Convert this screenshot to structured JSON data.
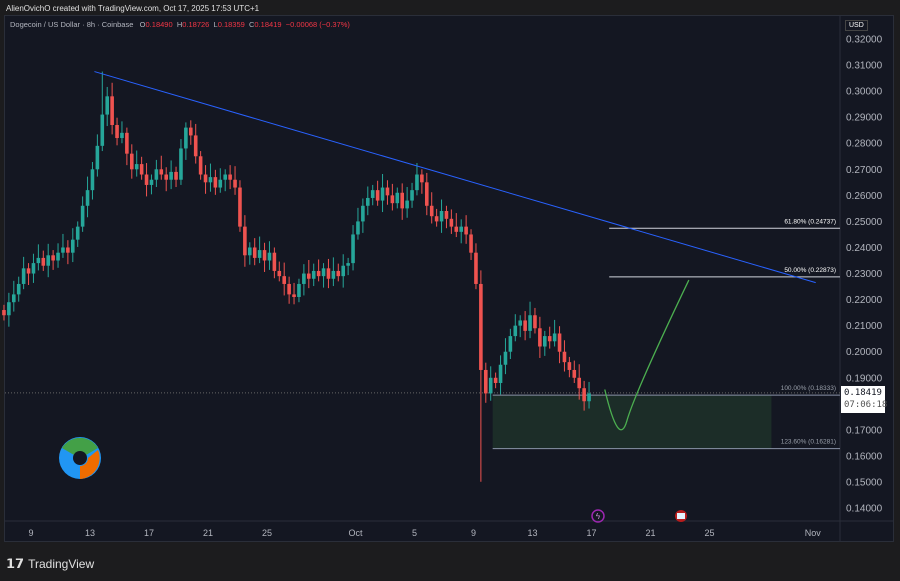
{
  "credit": "AlienOvichO created with TradingView.com, Oct 17, 2025 17:53 UTC+1",
  "legend": {
    "symbol": "Dogecoin / US Dollar · 8h · Coinbase",
    "o_label": "O",
    "o": "0.18490",
    "h_label": "H",
    "h": "0.18726",
    "l_label": "L",
    "l": "0.18359",
    "c_label": "C",
    "c": "0.18419",
    "change": "−0.00068 (−0.37%)"
  },
  "currency": "USD",
  "last_price": "0.18419",
  "countdown": "07:06:18",
  "footer_brand": "TradingView",
  "colors": {
    "up": "#26a69a",
    "down": "#ef5350",
    "trend": "#2962ff",
    "curve": "#4caf50",
    "bg": "#141722"
  },
  "chart_data": {
    "type": "candlestick",
    "interval": "8h",
    "start": "Sep 7",
    "closes": [
      0.214,
      0.219,
      0.222,
      0.226,
      0.232,
      0.23,
      0.234,
      0.236,
      0.233,
      0.237,
      0.235,
      0.238,
      0.24,
      0.238,
      0.243,
      0.248,
      0.256,
      0.262,
      0.27,
      0.279,
      0.291,
      0.298,
      0.287,
      0.282,
      0.284,
      0.276,
      0.27,
      0.272,
      0.268,
      0.264,
      0.266,
      0.27,
      0.268,
      0.266,
      0.269,
      0.266,
      0.278,
      0.286,
      0.283,
      0.275,
      0.268,
      0.265,
      0.267,
      0.263,
      0.266,
      0.268,
      0.266,
      0.263,
      0.248,
      0.237,
      0.24,
      0.236,
      0.239,
      0.235,
      0.238,
      0.231,
      0.229,
      0.226,
      0.222,
      0.221,
      0.226,
      0.23,
      0.228,
      0.231,
      0.229,
      0.232,
      0.228,
      0.231,
      0.229,
      0.233,
      0.234,
      0.245,
      0.25,
      0.256,
      0.259,
      0.262,
      0.258,
      0.263,
      0.26,
      0.257,
      0.261,
      0.255,
      0.258,
      0.262,
      0.268,
      0.265,
      0.256,
      0.252,
      0.25,
      0.254,
      0.251,
      0.248,
      0.246,
      0.248,
      0.245,
      0.238,
      0.226,
      0.193,
      0.184,
      0.19,
      0.188,
      0.195,
      0.2,
      0.206,
      0.21,
      0.212,
      0.208,
      0.214,
      0.209,
      0.202,
      0.206,
      0.204,
      0.207,
      0.2,
      0.196,
      0.193,
      0.19,
      0.186,
      0.181,
      0.184
    ],
    "crash_low": 0.1501,
    "price_axis": [
      "0.32000",
      "0.31000",
      "0.30000",
      "0.29000",
      "0.28000",
      "0.27000",
      "0.26000",
      "0.25000",
      "0.24000",
      "0.23000",
      "0.22000",
      "0.21000",
      "0.20000",
      "0.19000",
      "0.18000",
      "0.17000",
      "0.16000",
      "0.15000",
      "0.14000"
    ],
    "time_axis": [
      {
        "label": "9",
        "day": 9
      },
      {
        "label": "13",
        "day": 13
      },
      {
        "label": "17",
        "day": 17
      },
      {
        "label": "21",
        "day": 21
      },
      {
        "label": "25",
        "day": 25
      },
      {
        "label": "Oct",
        "day": 31
      },
      {
        "label": "5",
        "day": 35
      },
      {
        "label": "9",
        "day": 39
      },
      {
        "label": "13",
        "day": 43
      },
      {
        "label": "17",
        "day": 47
      },
      {
        "label": "21",
        "day": 51
      },
      {
        "label": "25",
        "day": 55
      },
      {
        "label": "Nov",
        "day": 62
      }
    ],
    "trendline": [
      {
        "day": 13.3,
        "price": 0.3075
      },
      {
        "day": 62.2,
        "price": 0.2265
      }
    ],
    "fib_levels": [
      {
        "label": "61.80% (0.24737)",
        "price": 0.24737
      },
      {
        "label": "50.00% (0.22873)",
        "price": 0.22873
      },
      {
        "label": "100.00% (0.18333)",
        "price": 0.18333
      },
      {
        "label": "123.60% (0.16281)",
        "price": 0.16281
      }
    ],
    "zone": {
      "from_day": 40.3,
      "to_day": 59.2,
      "top": 0.18333,
      "bottom": 0.16281
    },
    "projection": [
      {
        "day": 47.9,
        "price": 0.1855
      },
      {
        "day": 49.4,
        "price": 0.1735
      },
      {
        "day": 53.6,
        "price": 0.2275
      }
    ]
  }
}
